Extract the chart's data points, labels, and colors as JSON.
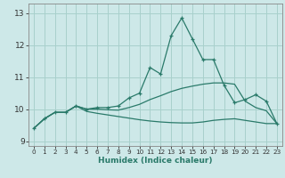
{
  "xlabel": "Humidex (Indice chaleur)",
  "xlim": [
    -0.5,
    23.5
  ],
  "ylim": [
    8.85,
    13.3
  ],
  "yticks": [
    9,
    10,
    11,
    12,
    13
  ],
  "xticks": [
    0,
    1,
    2,
    3,
    4,
    5,
    6,
    7,
    8,
    9,
    10,
    11,
    12,
    13,
    14,
    15,
    16,
    17,
    18,
    19,
    20,
    21,
    22,
    23
  ],
  "bg_color": "#cde8e8",
  "grid_color": "#a8d0cc",
  "line_color": "#2a7a6a",
  "series": [
    [
      9.4,
      9.7,
      9.9,
      9.9,
      10.1,
      10.0,
      10.05,
      10.05,
      10.1,
      10.35,
      10.5,
      11.3,
      11.1,
      12.3,
      12.85,
      12.2,
      11.55,
      11.55,
      10.75,
      10.2,
      10.3,
      10.45,
      10.25,
      9.55
    ],
    [
      9.4,
      9.7,
      9.9,
      9.9,
      10.1,
      10.0,
      10.0,
      9.98,
      9.97,
      10.05,
      10.15,
      10.3,
      10.42,
      10.55,
      10.65,
      10.72,
      10.78,
      10.82,
      10.82,
      10.78,
      10.25,
      10.05,
      9.95,
      9.55
    ],
    [
      9.4,
      9.7,
      9.9,
      9.9,
      10.1,
      9.93,
      9.87,
      9.82,
      9.77,
      9.72,
      9.67,
      9.63,
      9.6,
      9.58,
      9.57,
      9.57,
      9.6,
      9.65,
      9.68,
      9.7,
      9.65,
      9.6,
      9.55,
      9.55
    ]
  ],
  "has_markers": [
    true,
    false,
    false
  ],
  "marker_style": "+",
  "marker_size": 3.5,
  "linewidth": 0.9
}
